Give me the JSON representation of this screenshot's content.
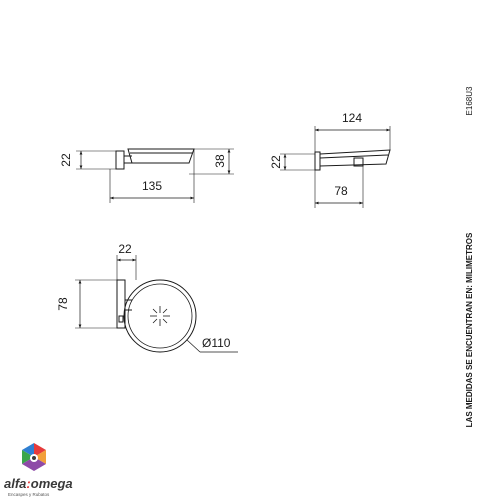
{
  "drawing": {
    "code": "E168U3",
    "note": "LAS MEDIDAS SE ENCUENTRAN EN: MILIMETROS",
    "front_view": {
      "height_left": "22",
      "height_right": "38",
      "width": "135"
    },
    "side_view": {
      "width_top": "124",
      "height_left": "22",
      "width_bottom": "78"
    },
    "top_view": {
      "width_top": "22",
      "height_left": "78",
      "diameter": "Ø110"
    }
  },
  "brand": {
    "name_part1": "alfa",
    "name_part2": "omega",
    "tagline": "Encaspes y Rubatos",
    "colors": {
      "red": "#e63b3b",
      "blue": "#2f7fd1",
      "green": "#3aa64b",
      "orange": "#f2a03a",
      "purple": "#8e4aa8"
    }
  }
}
